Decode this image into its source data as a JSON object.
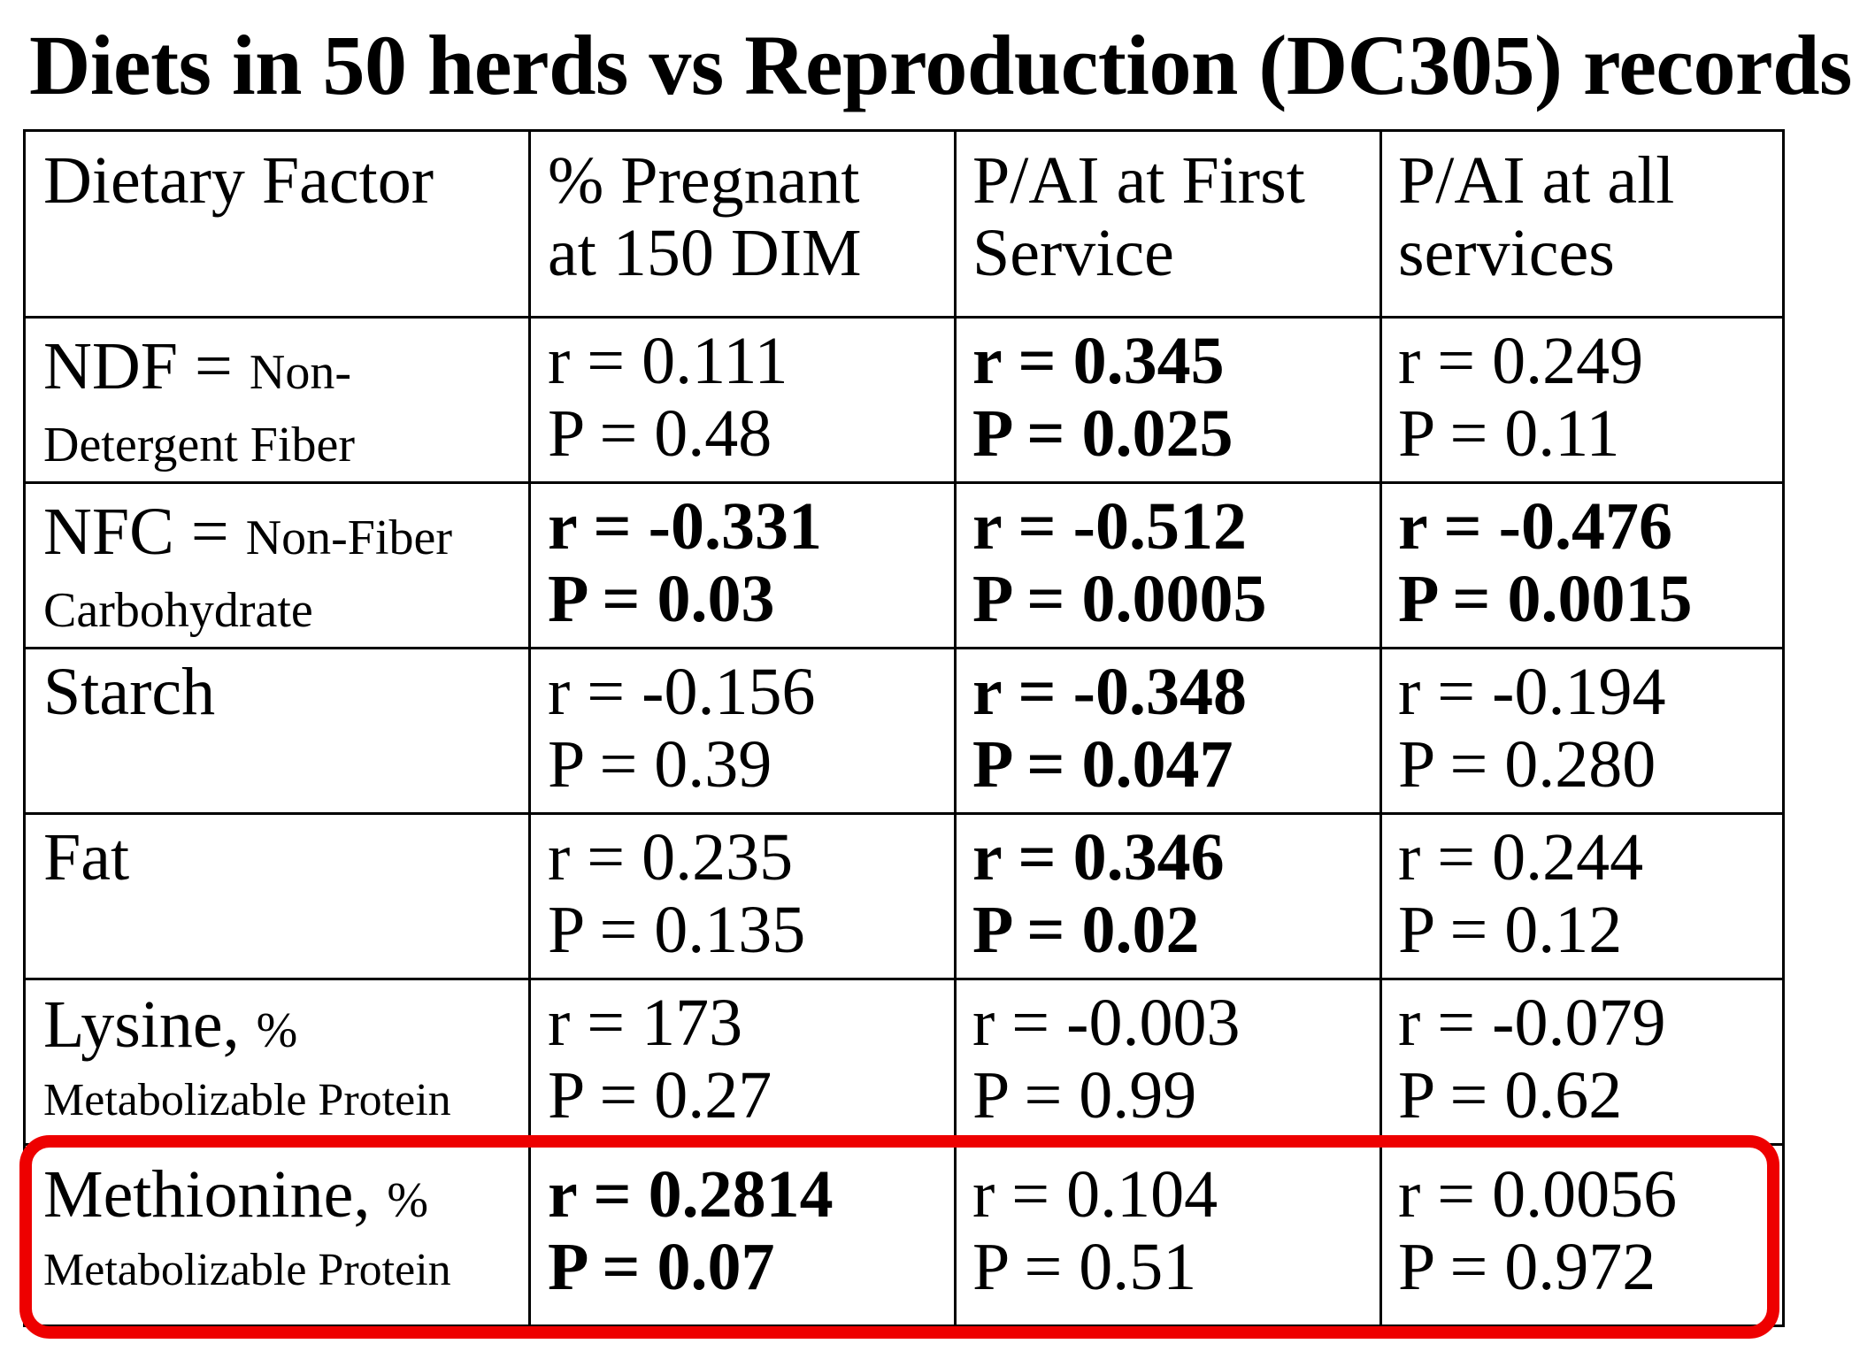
{
  "title": "Diets in 50 herds vs Reproduction (DC305) records",
  "accent_color": "#ee0000",
  "table": {
    "headers": [
      [
        "Dietary Factor",
        ""
      ],
      [
        "% Pregnant",
        "at 150 DIM"
      ],
      [
        "P/AI at First",
        "Service"
      ],
      [
        "P/AI at all",
        "services"
      ]
    ],
    "rows": [
      {
        "factor": {
          "main": "NDF = ",
          "small": "Non-",
          "line2": "Detergent Fiber"
        },
        "cells": [
          {
            "r": "r = 0.111",
            "p": "P = 0.48"
          },
          {
            "r": "r = 0.345",
            "p": "P = 0.025"
          },
          {
            "r": "r = 0.249",
            "p": "P = 0.11"
          }
        ]
      },
      {
        "factor": {
          "main": "NFC = ",
          "small": "Non-Fiber",
          "line2": "Carbohydrate"
        },
        "cells": [
          {
            "r": "r = -0.331",
            "p": "P = 0.03"
          },
          {
            "r": "r = -0.512",
            "p": "P = 0.0005"
          },
          {
            "r": "r = -0.476",
            "p": "P = 0.0015"
          }
        ]
      },
      {
        "factor": {
          "main": "Starch",
          "small": "",
          "line2": ""
        },
        "cells": [
          {
            "r": "r = -0.156",
            "p": "P = 0.39"
          },
          {
            "r": "r = -0.348",
            "p": "P = 0.047"
          },
          {
            "r": "r = -0.194",
            "p": "P = 0.280"
          }
        ]
      },
      {
        "factor": {
          "main": "Fat",
          "small": "",
          "line2": ""
        },
        "cells": [
          {
            "r": "r = 0.235",
            "p": "P = 0.135"
          },
          {
            "r": "r = 0.346",
            "p": "P = 0.02"
          },
          {
            "r": "r = 0.244",
            "p": "P = 0.12"
          }
        ]
      },
      {
        "factor": {
          "main": "Lysine, ",
          "small": "%",
          "line2": "Metabolizable Protein"
        },
        "cells": [
          {
            "r": "r = 173",
            "p": "P = 0.27"
          },
          {
            "r": "r = -0.003",
            "p": "P = 0.99"
          },
          {
            "r": "r = -0.079",
            "p": "P = 0.62"
          }
        ]
      },
      {
        "factor": {
          "main": "Methionine, ",
          "small": "%",
          "line2": "Metabolizable Protein"
        },
        "cells": [
          {
            "r": "r = 0.2814",
            "p": "P = 0.07"
          },
          {
            "r": "r = 0.104",
            "p": "P = 0.51"
          },
          {
            "r": "r = 0.0056",
            "p": "P = 0.972"
          }
        ]
      }
    ]
  }
}
